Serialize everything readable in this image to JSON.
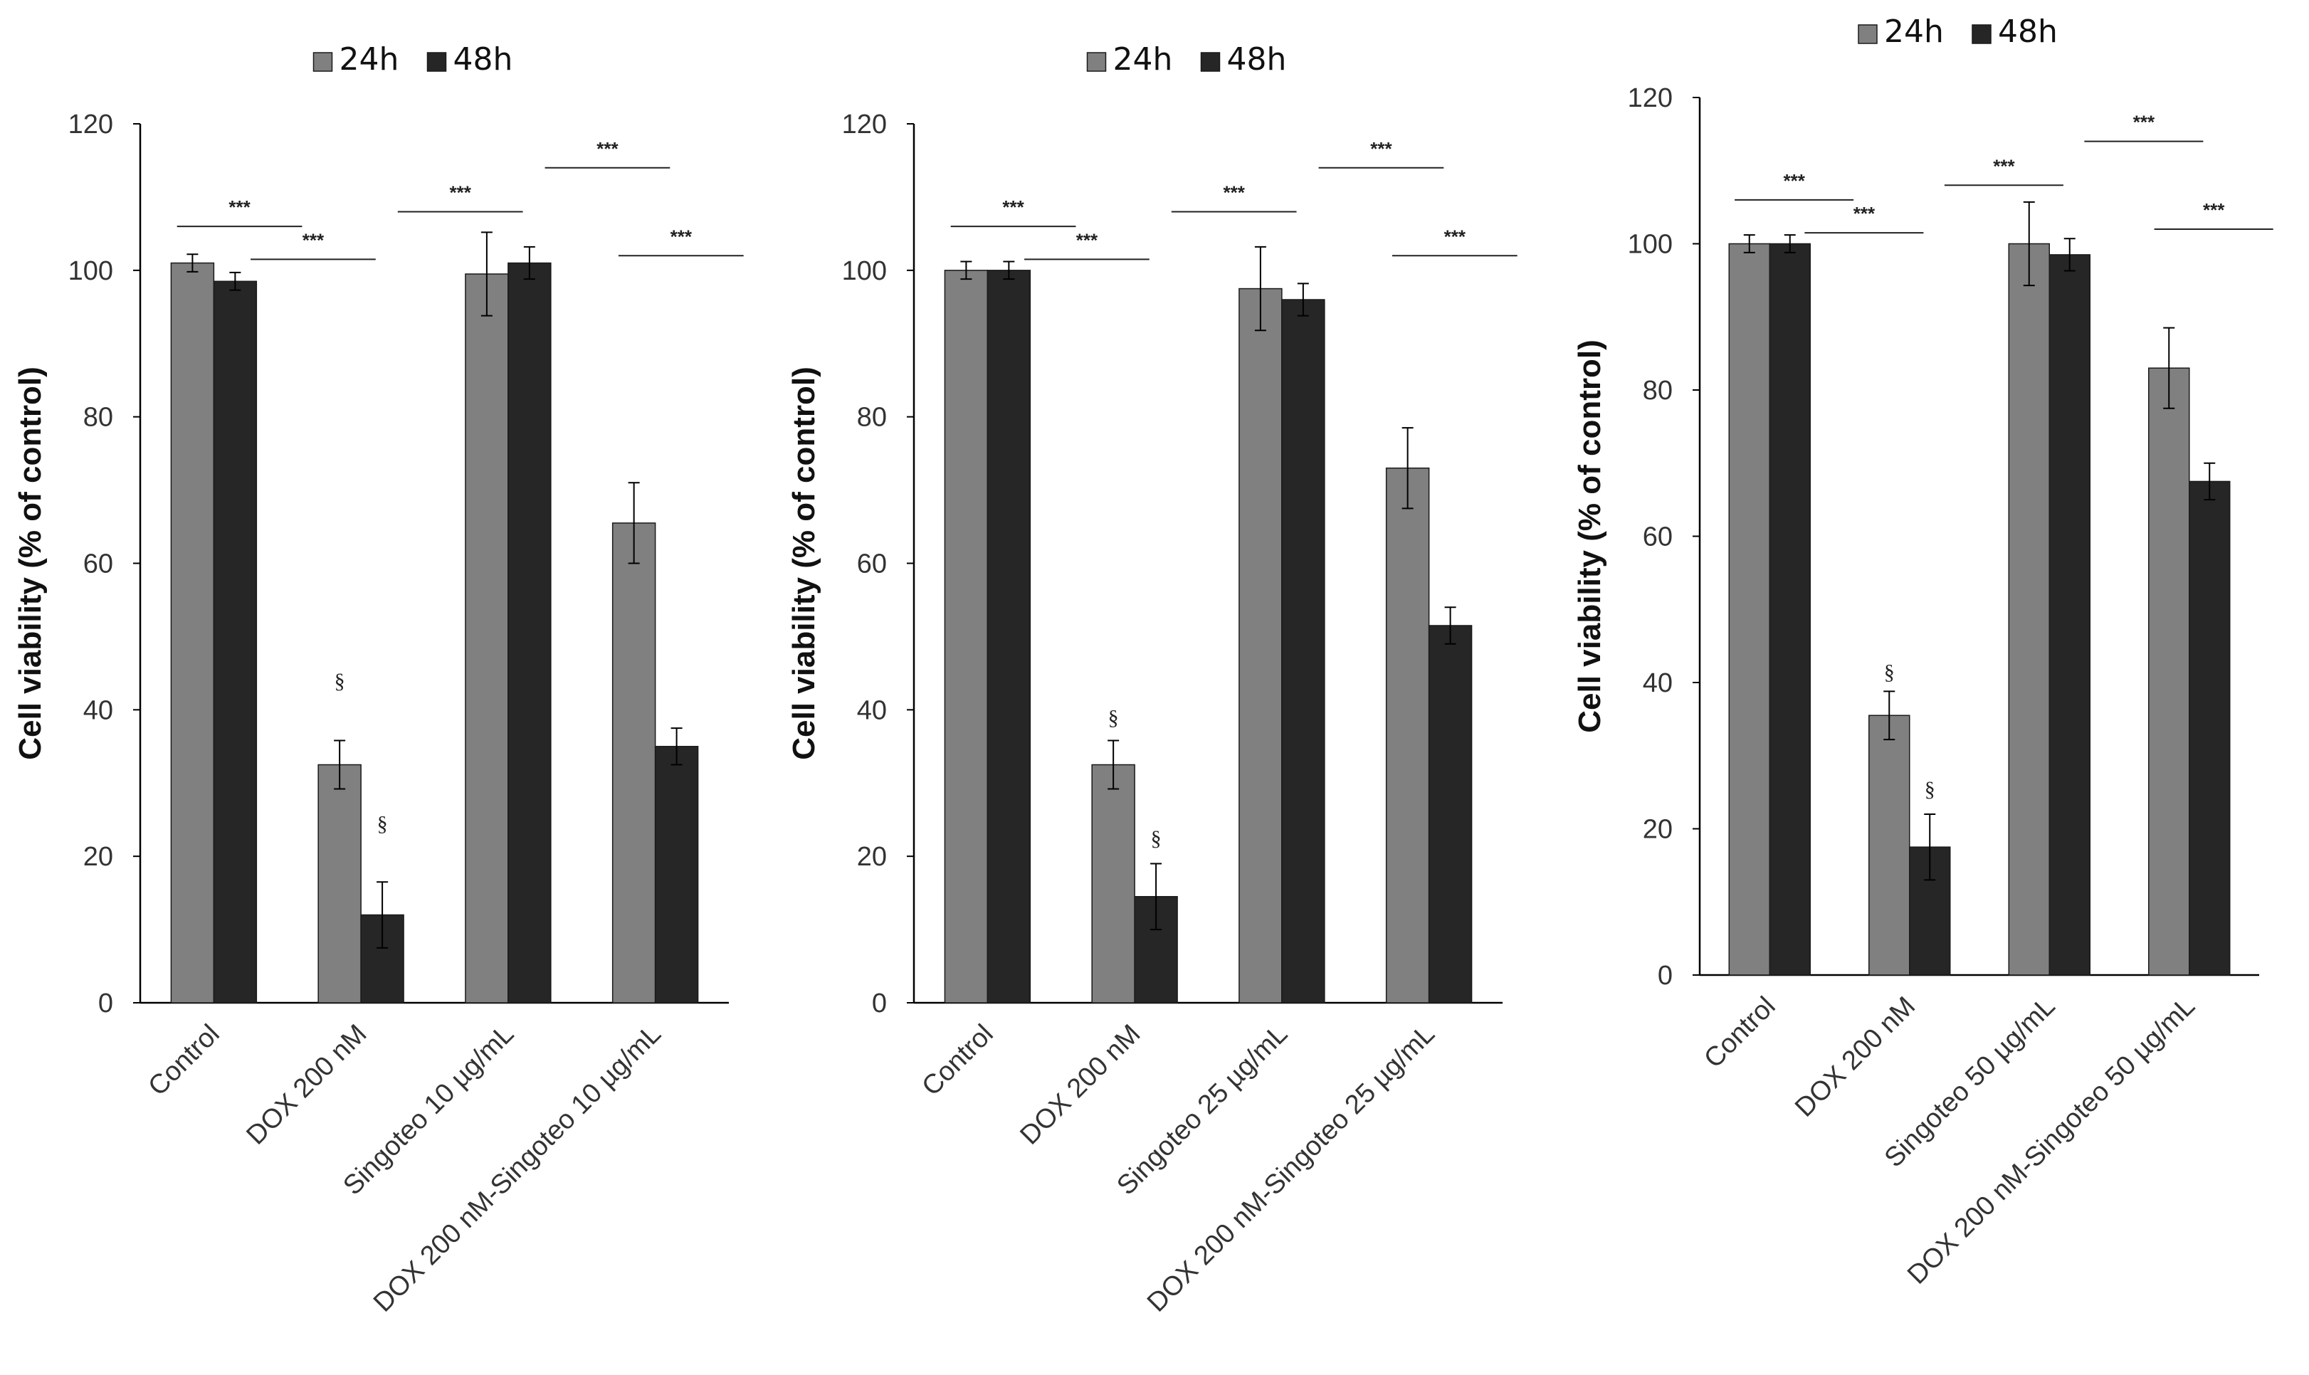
{
  "colors": {
    "s24": "#808080",
    "s48": "#262626",
    "axis": "#000000",
    "text": "#333333"
  },
  "chart_data": [
    {
      "type": "bar",
      "title": "",
      "ylabel": "Cell viability (% of control)",
      "xlabel": "",
      "ylim": [
        0,
        120
      ],
      "yticks": [
        "0",
        "20",
        "40",
        "60",
        "80",
        "100",
        "120"
      ],
      "legend_position": "top-center",
      "categories": [
        "Control",
        "DOX 200 nM",
        "Singoteo 10 µg/mL",
        "DOX 200 nM-Singoteo 10 µg/mL"
      ],
      "series": [
        {
          "name": "24h",
          "values": [
            101,
            32.5,
            99.5,
            65.5
          ],
          "errors": [
            1.2,
            3.3,
            5.7,
            5.5
          ]
        },
        {
          "name": "48h",
          "values": [
            98.5,
            12,
            101,
            35
          ],
          "errors": [
            1.2,
            4.5,
            2.2,
            2.5
          ]
        }
      ],
      "annotations": [
        {
          "text": "***",
          "from": 0,
          "to": 1,
          "level": 106
        },
        {
          "text": "***",
          "from": 0.5,
          "to": 1.5,
          "level": 101.5
        },
        {
          "text": "***",
          "from": 1.5,
          "to": 2.5,
          "level": 108
        },
        {
          "text": "***",
          "from": 2.5,
          "to": 3.5,
          "level": 114
        },
        {
          "text": "***",
          "from": 3,
          "to": 4,
          "level": 102
        }
      ],
      "marks": [
        {
          "text": "§",
          "category": 1,
          "series": 0,
          "value": 43
        },
        {
          "text": "§",
          "category": 1,
          "series": 1,
          "value": 23.5
        }
      ]
    },
    {
      "type": "bar",
      "title": "",
      "ylabel": "Cell viability (% of control)",
      "xlabel": "",
      "ylim": [
        0,
        120
      ],
      "yticks": [
        "0",
        "20",
        "40",
        "60",
        "80",
        "100",
        "120"
      ],
      "legend_position": "top-center",
      "categories": [
        "Control",
        "DOX 200 nM",
        "Singoteo 25 µg/mL",
        "DOX 200 nM-Singoteo 25 µg/mL"
      ],
      "series": [
        {
          "name": "24h",
          "values": [
            100,
            32.5,
            97.5,
            73
          ],
          "errors": [
            1.2,
            3.3,
            5.7,
            5.5
          ]
        },
        {
          "name": "48h",
          "values": [
            100,
            14.5,
            96,
            51.5
          ],
          "errors": [
            1.2,
            4.5,
            2.2,
            2.5
          ]
        }
      ],
      "annotations": [
        {
          "text": "***",
          "from": 0,
          "to": 1,
          "level": 106
        },
        {
          "text": "***",
          "from": 0.5,
          "to": 1.5,
          "level": 101.5
        },
        {
          "text": "***",
          "from": 1.5,
          "to": 2.5,
          "level": 108
        },
        {
          "text": "***",
          "from": 2.5,
          "to": 3.5,
          "level": 114
        },
        {
          "text": "***",
          "from": 3,
          "to": 4,
          "level": 102
        }
      ],
      "marks": [
        {
          "text": "§",
          "category": 1,
          "series": 0,
          "value": 38
        },
        {
          "text": "§",
          "category": 1,
          "series": 1,
          "value": 21.5
        }
      ]
    },
    {
      "type": "bar",
      "title": "",
      "ylabel": "Cell viability (% of control)",
      "xlabel": "",
      "ylim": [
        0,
        120
      ],
      "yticks": [
        "0",
        "20",
        "40",
        "60",
        "80",
        "100",
        "120"
      ],
      "legend_position": "top-center",
      "categories": [
        "Control",
        "DOX 200 nM",
        "Singoteo 50 µg/mL",
        "DOX 200 nM-Singoteo 50 µg/mL"
      ],
      "series": [
        {
          "name": "24h",
          "values": [
            100,
            35.5,
            100,
            83
          ],
          "errors": [
            1.2,
            3.3,
            5.7,
            5.5
          ]
        },
        {
          "name": "48h",
          "values": [
            100,
            17.5,
            98.5,
            67.5
          ],
          "errors": [
            1.2,
            4.5,
            2.2,
            2.5
          ]
        }
      ],
      "annotations": [
        {
          "text": "***",
          "from": 0,
          "to": 1,
          "level": 106
        },
        {
          "text": "***",
          "from": 0.5,
          "to": 1.5,
          "level": 101.5
        },
        {
          "text": "***",
          "from": 1.5,
          "to": 2.5,
          "level": 108
        },
        {
          "text": "***",
          "from": 2.5,
          "to": 3.5,
          "level": 114
        },
        {
          "text": "***",
          "from": 3,
          "to": 4,
          "level": 102
        }
      ],
      "marks": [
        {
          "text": "§",
          "category": 1,
          "series": 0,
          "value": 40.5
        },
        {
          "text": "§",
          "category": 1,
          "series": 1,
          "value": 24.5
        }
      ]
    }
  ]
}
